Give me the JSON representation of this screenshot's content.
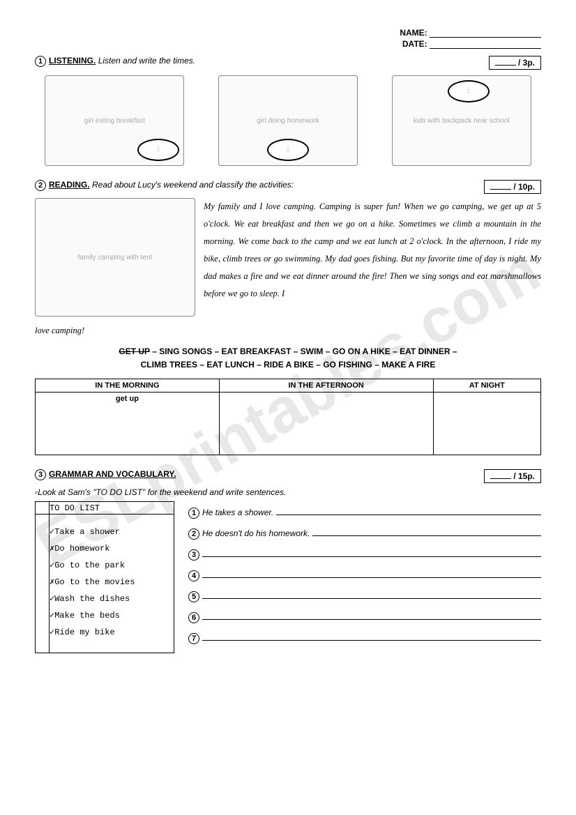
{
  "header": {
    "name_label": "NAME:",
    "date_label": "DATE:"
  },
  "section1": {
    "num": "1",
    "title": "LISTENING.",
    "instruction": "Listen and write the times.",
    "score": "/ 3p.",
    "images": [
      "girl eating breakfast",
      "girl doing homework",
      "kids with backpack near school"
    ]
  },
  "section2": {
    "num": "2",
    "title": "READING.",
    "instruction": "Read about Lucy's weekend and classify the activities:",
    "score": "/ 10p.",
    "image_alt": "family camping with tent",
    "paragraph": "My family and I love camping. Camping is super fun! When we go camping, we get up at 5 o'clock. We eat breakfast and then we go on a hike. Sometimes we climb a mountain in the morning. We come back to the camp and we eat lunch at 2 o'clock. In the afternoon, I ride my bike, climb trees or go swimming. My dad goes fishing. But my favorite time of day is night. My dad makes a fire and we eat dinner around the fire! Then we sing songs and eat marshmallows before we go to sleep. I",
    "paragraph_tail": "love camping!",
    "wordbank_line1_strike": "GET UP",
    "wordbank_line1_rest": " – SING SONGS – EAT BREAKFAST – SWIM – GO ON A HIKE – EAT DINNER –",
    "wordbank_line2": "CLIMB TREES – EAT LUNCH – RIDE A BIKE – GO FISHING – MAKE A FIRE",
    "table": {
      "col1": "IN THE MORNING",
      "col2": "IN THE AFTERNOON",
      "col3": "AT NIGHT",
      "cell1": "get up"
    }
  },
  "section3": {
    "num": "3",
    "title": "GRAMMAR AND VOCABULARY.",
    "score": "/ 15p.",
    "instruction_prefix": "▫",
    "instruction": "Look at Sam's \"TO DO LIST\" for the weekend and write sentences.",
    "todo": {
      "header": "TO DO LIST",
      "items": [
        {
          "mark": "✓",
          "text": "Take a shower"
        },
        {
          "mark": "✗",
          "text": "Do homework"
        },
        {
          "mark": "✓",
          "text": "Go to the park"
        },
        {
          "mark": "✗",
          "text": "Go to the movies"
        },
        {
          "mark": "✓",
          "text": "Wash the dishes"
        },
        {
          "mark": "✓",
          "text": "Make the beds"
        },
        {
          "mark": "✓",
          "text": "Ride my bike"
        }
      ]
    },
    "sentences": [
      {
        "num": "1",
        "text": "He takes a shower."
      },
      {
        "num": "2",
        "text": "He doesn't do his homework."
      },
      {
        "num": "3",
        "text": ""
      },
      {
        "num": "4",
        "text": ""
      },
      {
        "num": "5",
        "text": ""
      },
      {
        "num": "6",
        "text": ""
      },
      {
        "num": "7",
        "text": ""
      }
    ]
  }
}
